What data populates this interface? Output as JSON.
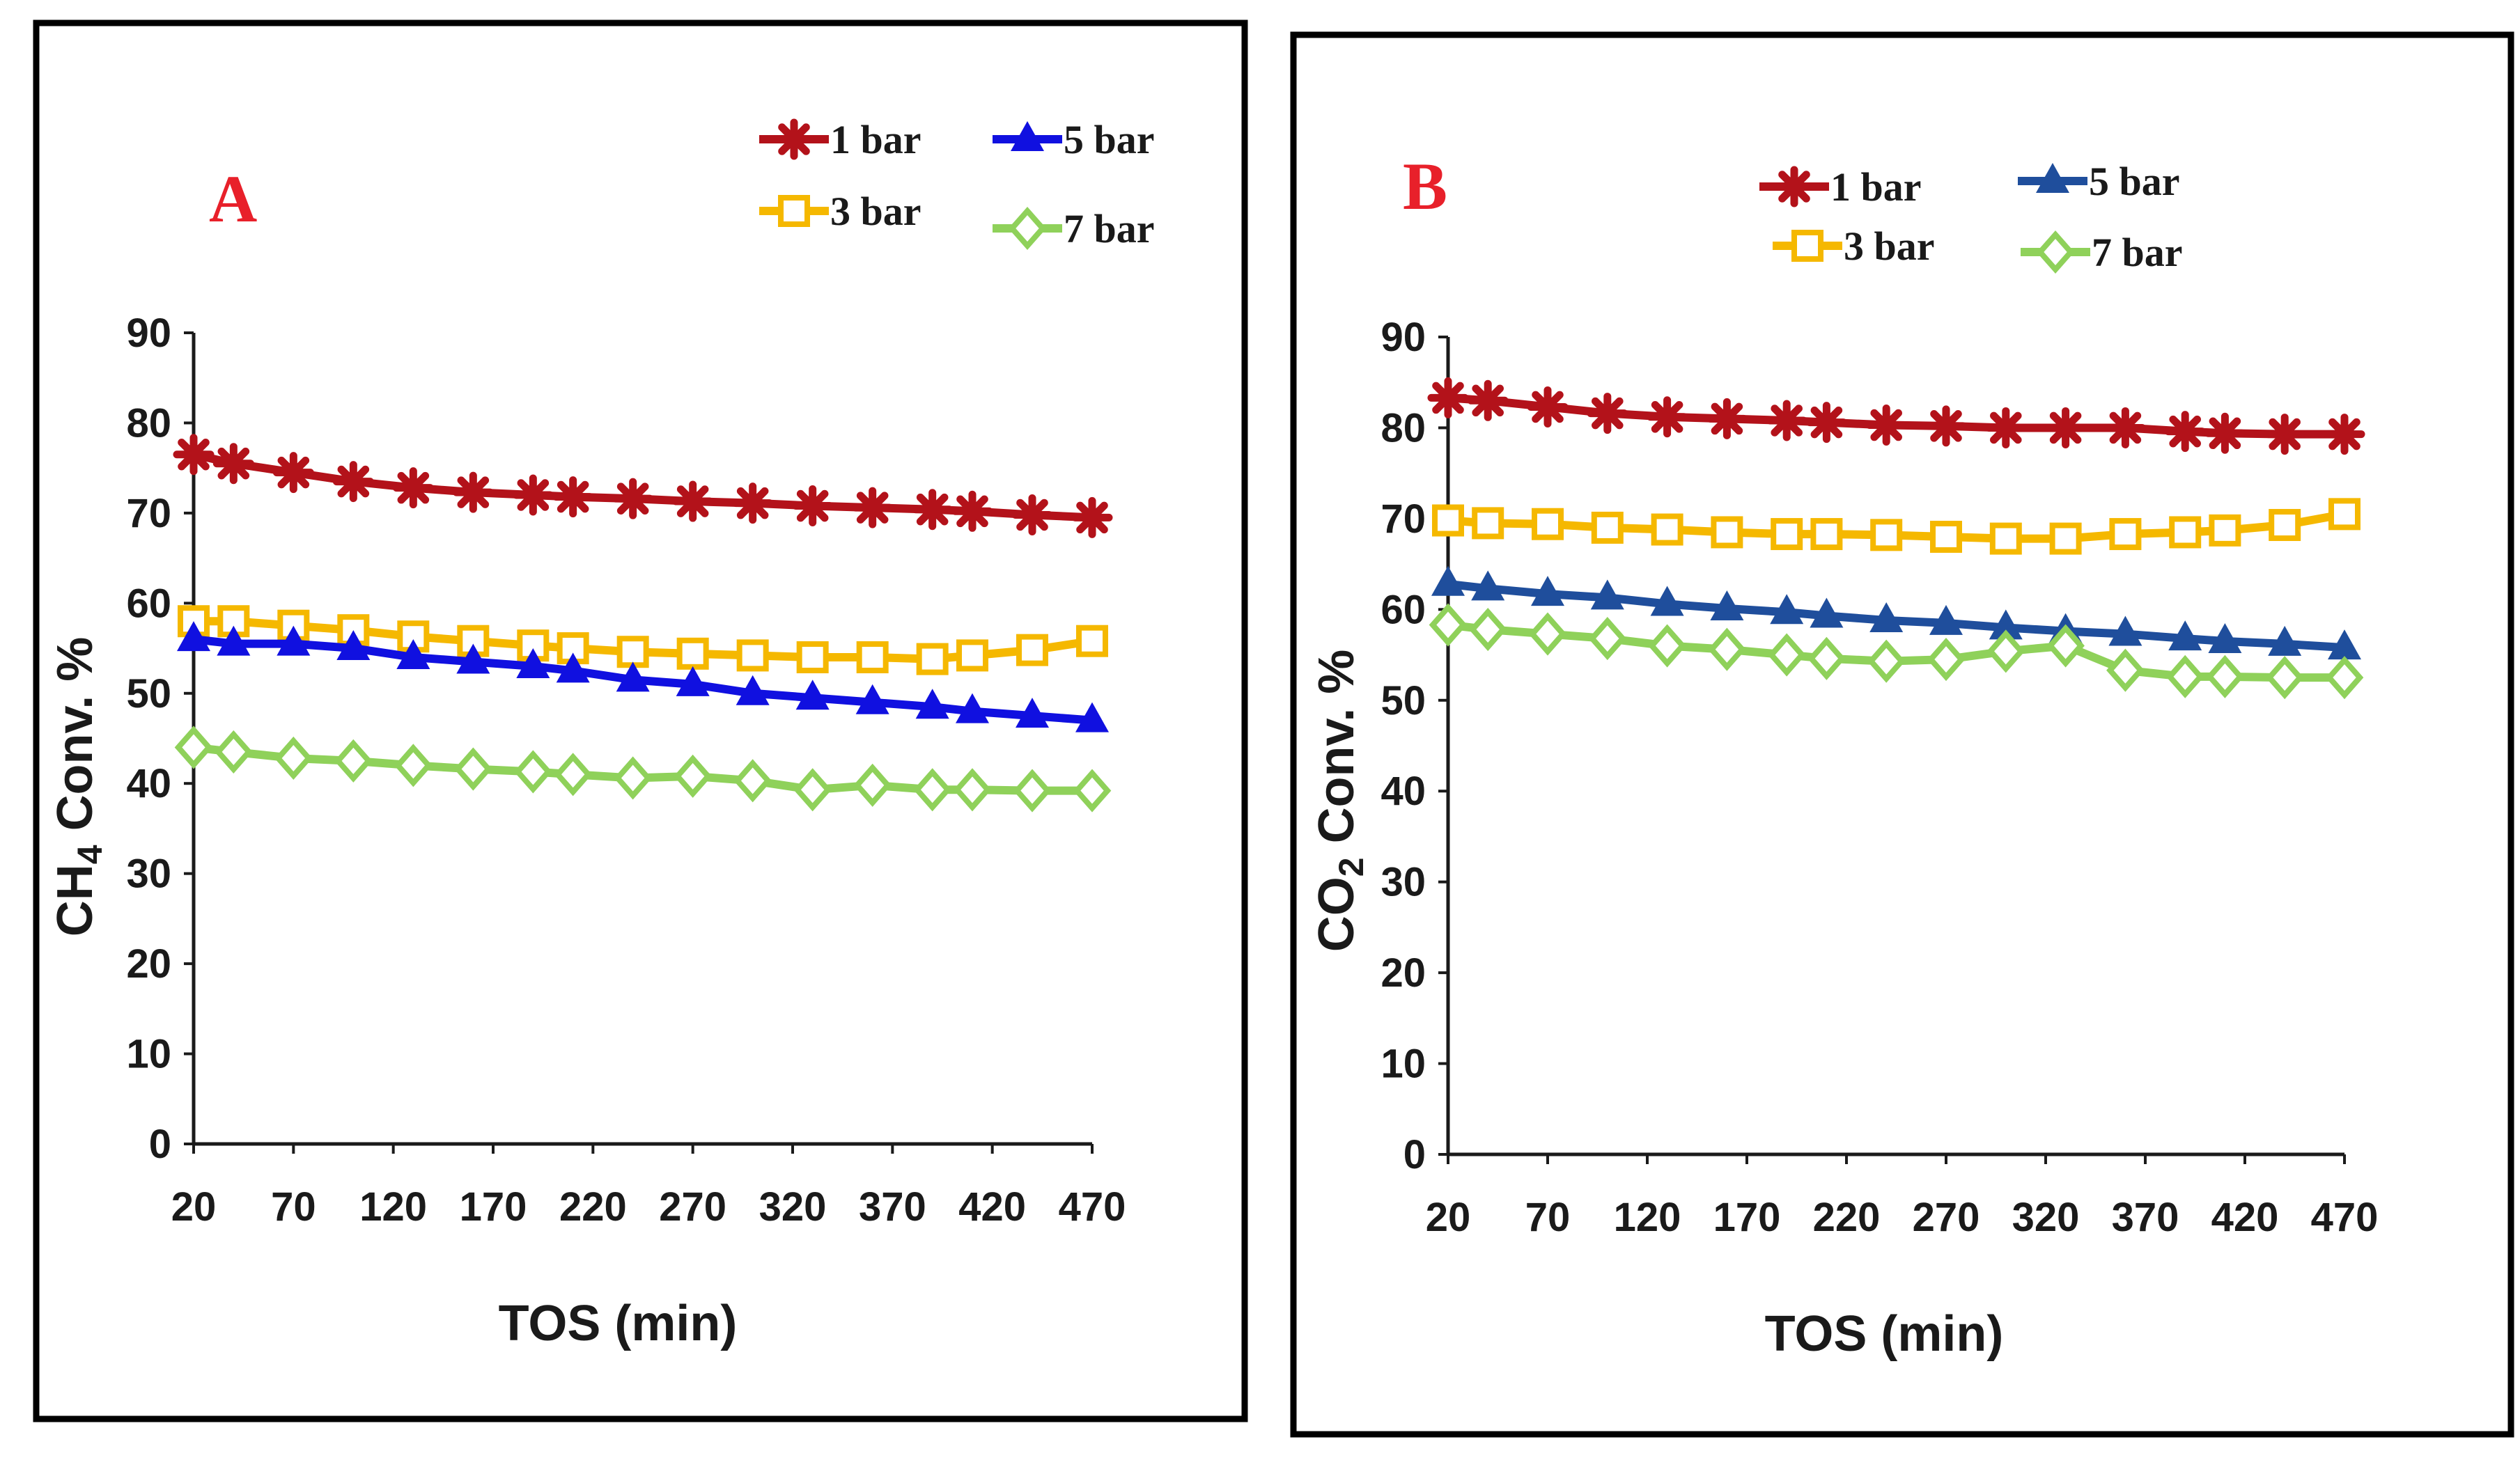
{
  "chart_data": [
    {
      "panel": "A",
      "type": "line",
      "title": "",
      "xlabel": "TOS (min)",
      "ylabel_main": "CH",
      "ylabel_sub": "4",
      "ylabel_rest": " Conv. %",
      "xlim": [
        20,
        470
      ],
      "ylim": [
        0,
        90
      ],
      "xticks": [
        "20",
        "70",
        "120",
        "170",
        "220",
        "270",
        "320",
        "370",
        "420",
        "470"
      ],
      "yticks": [
        "0",
        "10",
        "20",
        "30",
        "40",
        "50",
        "60",
        "70",
        "80",
        "90"
      ],
      "legend_position": "top-right",
      "x": [
        20,
        40,
        70,
        100,
        130,
        160,
        190,
        210,
        240,
        270,
        300,
        330,
        360,
        390,
        410,
        440,
        470
      ],
      "series": [
        {
          "name": "1 bar",
          "color": "#b3121a",
          "marker": "asterisk",
          "values": [
            76.5,
            75.5,
            74.5,
            73.5,
            72.8,
            72.3,
            72.0,
            71.8,
            71.6,
            71.3,
            71.1,
            70.8,
            70.6,
            70.4,
            70.2,
            69.8,
            69.5
          ]
        },
        {
          "name": "3 bar",
          "color": "#f5b800",
          "marker": "square",
          "values": [
            58.0,
            58.0,
            57.5,
            57.0,
            56.3,
            55.8,
            55.3,
            55.0,
            54.6,
            54.4,
            54.2,
            54.0,
            54.0,
            53.8,
            54.2,
            54.8,
            55.8
          ]
        },
        {
          "name": "5 bar",
          "color": "#1010e0",
          "marker": "triangle",
          "values": [
            56.0,
            55.5,
            55.5,
            55.0,
            54.0,
            53.5,
            53.0,
            52.5,
            51.5,
            51.0,
            50.0,
            49.5,
            49.0,
            48.5,
            48.0,
            47.5,
            47.0
          ]
        },
        {
          "name": "7 bar",
          "color": "#8fd15a",
          "marker": "diamond",
          "values": [
            44.0,
            43.5,
            42.8,
            42.5,
            42.0,
            41.6,
            41.3,
            41.0,
            40.6,
            40.8,
            40.3,
            39.3,
            39.8,
            39.3,
            39.3,
            39.2,
            39.2
          ]
        }
      ]
    },
    {
      "panel": "B",
      "type": "line",
      "title": "",
      "xlabel": "TOS (min)",
      "ylabel_main": "CO",
      "ylabel_sub": "2",
      "ylabel_rest": " Conv. %",
      "xlim": [
        20,
        470
      ],
      "ylim": [
        0,
        90
      ],
      "xticks": [
        "20",
        "70",
        "120",
        "170",
        "220",
        "270",
        "320",
        "370",
        "420",
        "470"
      ],
      "yticks": [
        "0",
        "10",
        "20",
        "30",
        "40",
        "50",
        "60",
        "70",
        "80",
        "90"
      ],
      "legend_position": "top-right",
      "x": [
        20,
        40,
        70,
        100,
        130,
        160,
        190,
        210,
        240,
        270,
        300,
        330,
        360,
        390,
        410,
        440,
        470
      ],
      "series": [
        {
          "name": "1 bar",
          "color": "#b3121a",
          "marker": "asterisk",
          "values": [
            83.3,
            83.0,
            82.3,
            81.6,
            81.2,
            81.0,
            80.8,
            80.6,
            80.3,
            80.2,
            80.0,
            80.0,
            80.0,
            79.6,
            79.4,
            79.3,
            79.3
          ]
        },
        {
          "name": "3 bar",
          "color": "#f5b800",
          "marker": "square",
          "values": [
            69.8,
            69.5,
            69.4,
            69.0,
            68.8,
            68.5,
            68.3,
            68.3,
            68.2,
            68.0,
            67.8,
            67.8,
            68.3,
            68.5,
            68.7,
            69.3,
            70.5
          ]
        },
        {
          "name": "5 bar",
          "color": "#1f4e9c",
          "marker": "triangle",
          "values": [
            62.8,
            62.3,
            61.7,
            61.3,
            60.6,
            60.1,
            59.7,
            59.3,
            58.8,
            58.5,
            58.0,
            57.6,
            57.3,
            56.8,
            56.5,
            56.2,
            55.8
          ]
        },
        {
          "name": "7 bar",
          "color": "#8fd15a",
          "marker": "diamond",
          "values": [
            58.3,
            57.8,
            57.3,
            56.8,
            56.0,
            55.6,
            55.0,
            54.6,
            54.3,
            54.5,
            55.4,
            56.0,
            53.3,
            52.6,
            52.6,
            52.5,
            52.5
          ]
        }
      ]
    }
  ]
}
